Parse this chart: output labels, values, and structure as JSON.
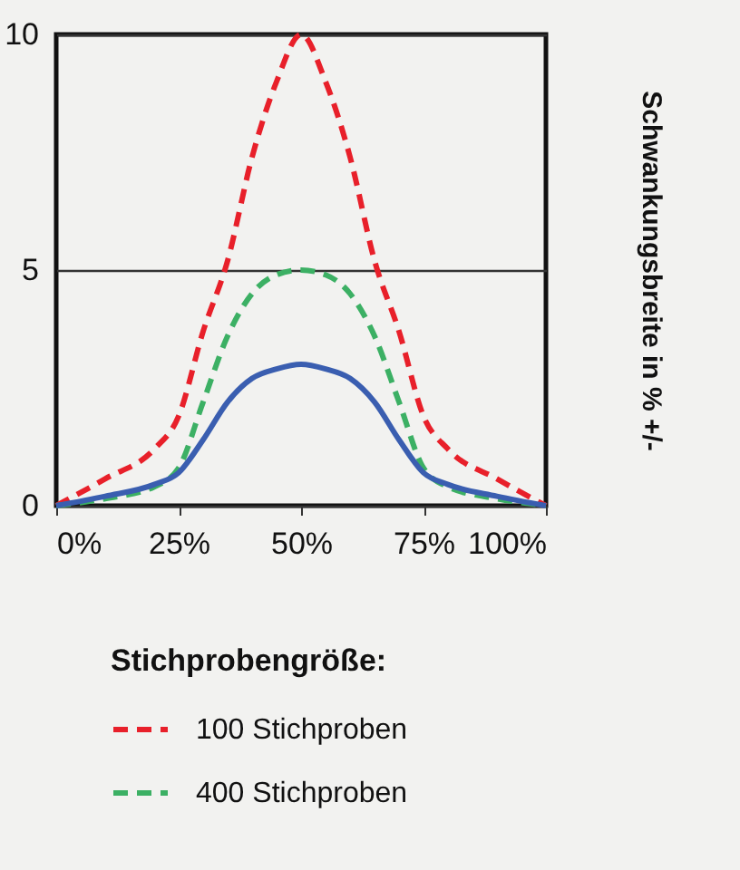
{
  "chart_data": {
    "type": "line",
    "ylabel": "Schwankungsbreite in % +/-",
    "legend_title": "Stichprobengröße:",
    "x": [
      0,
      10,
      20,
      25,
      30,
      35,
      40,
      45,
      50,
      55,
      60,
      65,
      70,
      75,
      80,
      90,
      100
    ],
    "xlim": [
      0,
      100
    ],
    "xticks": [
      {
        "value": 0,
        "label": "0%"
      },
      {
        "value": 25,
        "label": "25%"
      },
      {
        "value": 50,
        "label": "50%"
      },
      {
        "value": 75,
        "label": "75%"
      },
      {
        "value": 100,
        "label": "100%"
      }
    ],
    "ylim": [
      0,
      10
    ],
    "yticks": [
      0,
      5,
      10
    ],
    "grid": "y",
    "legend": "bottom",
    "series": [
      {
        "name": "100 Stichproben",
        "color": "#e8202a",
        "line_style": "dashed",
        "values": [
          0,
          0.57,
          1.2,
          1.9,
          3.7,
          5.2,
          7.4,
          9.0,
          10,
          9.0,
          7.4,
          5.2,
          3.7,
          1.9,
          1.2,
          0.57,
          0
        ]
      },
      {
        "name": "400 Stichproben",
        "color": "#3cb064",
        "line_style": "dashed",
        "values": [
          0,
          0.15,
          0.4,
          0.8,
          2.2,
          3.6,
          4.5,
          4.9,
          5,
          4.9,
          4.5,
          3.6,
          2.2,
          0.8,
          0.4,
          0.15,
          0
        ]
      },
      {
        "color": "#3a5eb0",
        "line_style": "solid",
        "values": [
          0,
          0.2,
          0.45,
          0.7,
          1.4,
          2.2,
          2.7,
          2.9,
          3,
          2.9,
          2.7,
          2.2,
          1.4,
          0.7,
          0.45,
          0.2,
          0
        ]
      }
    ]
  }
}
